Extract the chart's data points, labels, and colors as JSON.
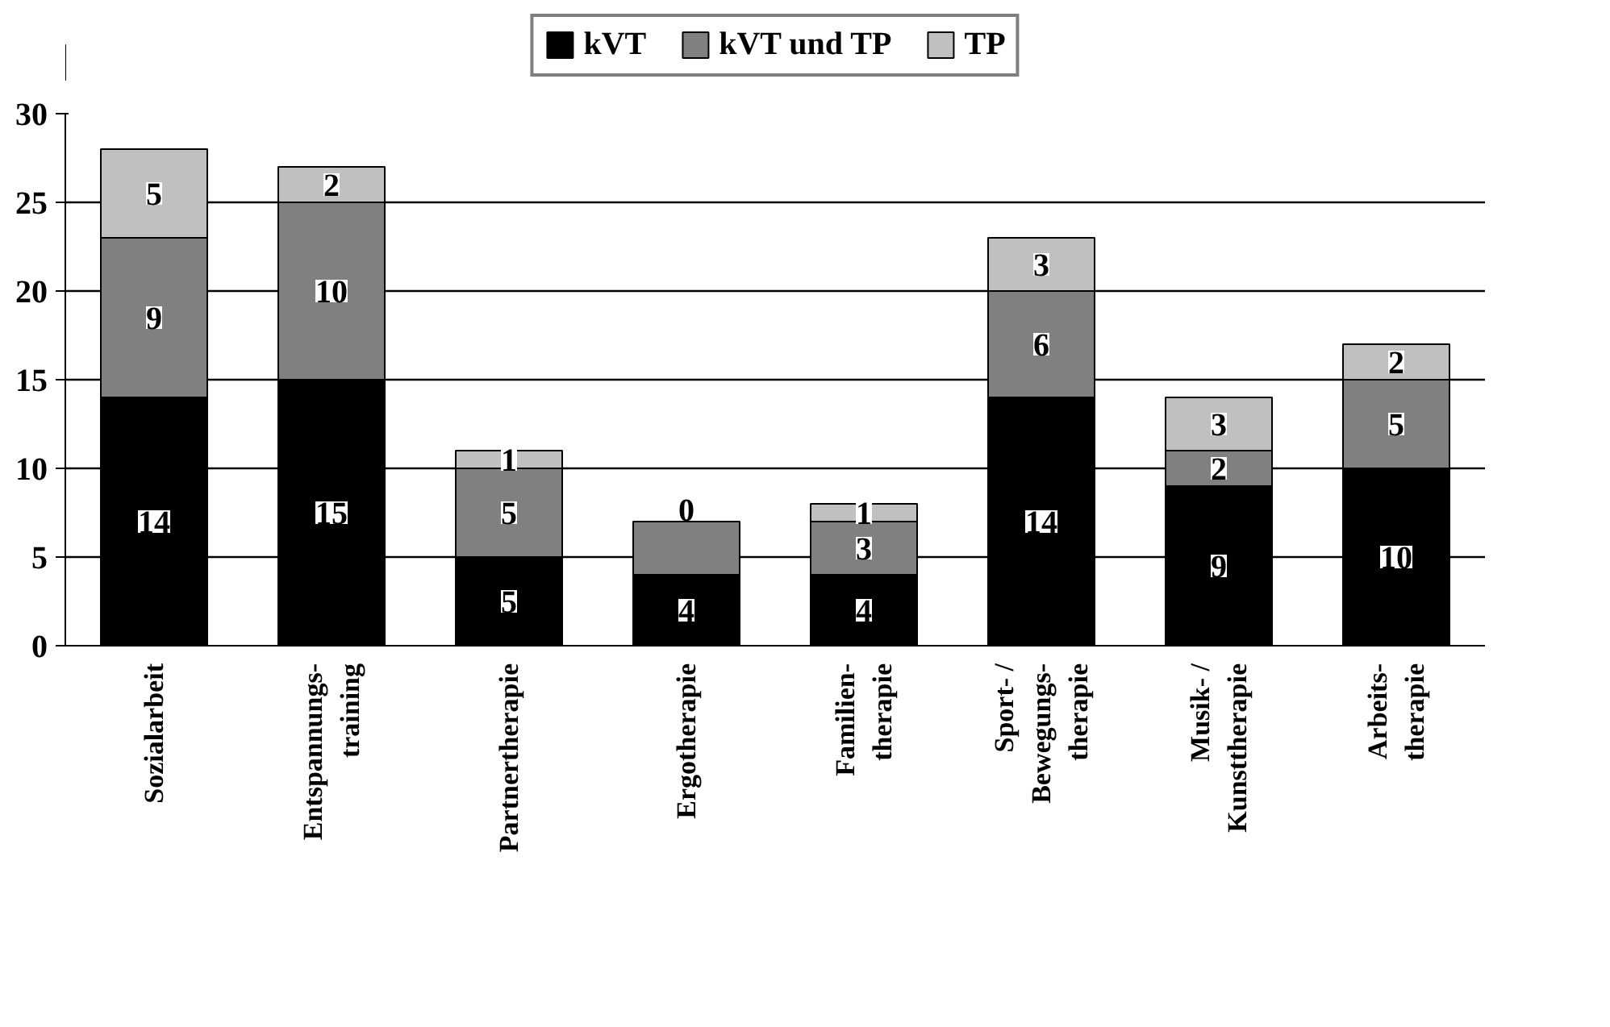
{
  "chart_data": {
    "type": "bar",
    "stacked": true,
    "categories": [
      "Sozialarbeit",
      "Entspannungs-\ntraining",
      "Partnertherapie",
      "Ergotherapie",
      "Familien-\ntherapie",
      "Sport- /\nBewegungs-\ntherapie",
      "Musik- /\nKunsttherapie",
      "Arbeits-\ntherapie"
    ],
    "series": [
      {
        "name": "kVT",
        "color": "#000000",
        "values": [
          14,
          15,
          5,
          4,
          4,
          14,
          9,
          10
        ],
        "value_labels": [
          "14",
          "15",
          "5",
          "4",
          "4",
          "14",
          "9",
          "10"
        ]
      },
      {
        "name": "kVT und TP",
        "color": "#808080",
        "values": [
          9,
          10,
          5,
          3,
          3,
          6,
          2,
          5
        ],
        "value_labels": [
          "9",
          "10",
          "5",
          null,
          "3",
          "6",
          "2",
          "5"
        ]
      },
      {
        "name": "TP",
        "color": "#c0c0c0",
        "values": [
          5,
          2,
          1,
          0,
          1,
          3,
          3,
          2
        ],
        "value_labels": [
          "5",
          "2",
          "1",
          "0",
          "1",
          "3",
          "3",
          "2"
        ]
      }
    ],
    "ylim": [
      0,
      30
    ],
    "yticks": [
      0,
      5,
      10,
      15,
      20,
      25,
      30
    ],
    "grid": "y",
    "legend": "top"
  }
}
